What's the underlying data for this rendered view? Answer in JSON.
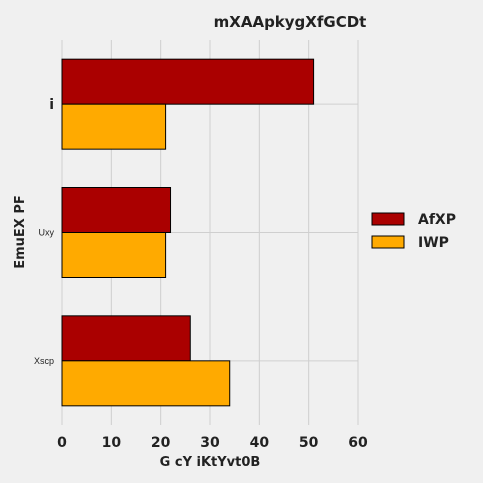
{
  "chart_data": {
    "type": "bar",
    "orientation": "horizontal",
    "title": "mXAApkygXfGCDt",
    "xlabel": "G  cY iKtYvt0B",
    "ylabel": "EmuEX PF",
    "categories": [
      "i",
      "Uxy",
      "Xscp"
    ],
    "series": [
      {
        "name": "AfXP",
        "values": [
          51,
          22,
          26
        ],
        "color": "#aa0000"
      },
      {
        "name": "IWP",
        "values": [
          21,
          21,
          34
        ],
        "color": "#ffaa00"
      }
    ],
    "xlim": [
      0,
      60
    ],
    "xticks": [
      0,
      10,
      20,
      30,
      40,
      50,
      60
    ],
    "grid": true,
    "legend_position": "right",
    "background_color": "#f0f0f0"
  }
}
